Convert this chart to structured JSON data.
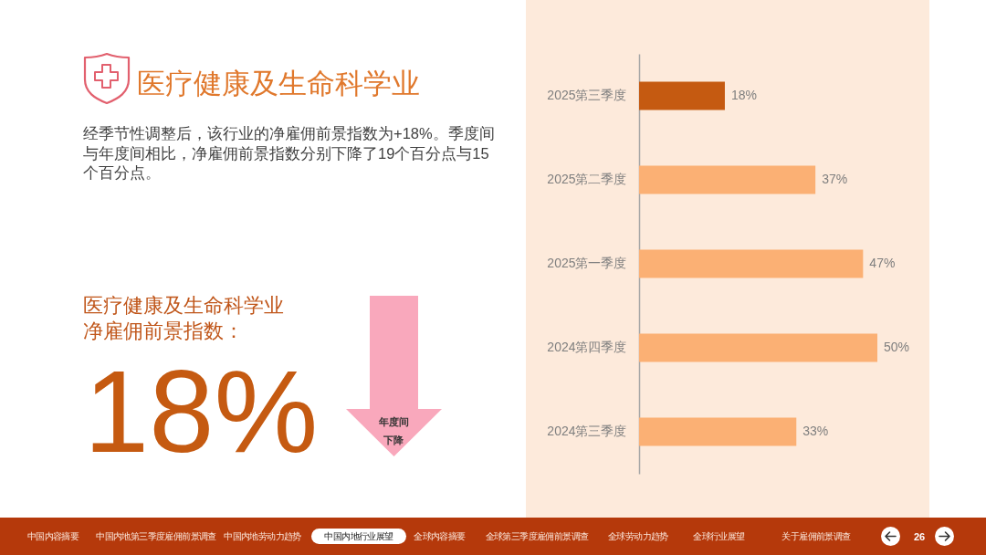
{
  "chart_data": [
    {
      "type": "other",
      "title": "医疗健康及生命科学业",
      "subtitle": "经季节性调整后，该行业的净雇佣前景指数为+18%。季度间与年度间相比，净雇佣前景指数分别下降了19个百分点与15个百分点。",
      "annotations": [
        "医疗健康及生命科学业净雇佣前景指数：",
        "18%",
        "年度间下降"
      ]
    },
    {
      "type": "bar",
      "orientation": "horizontal",
      "categories": [
        "2025第三季度",
        "2025第二季度",
        "2025第一季度",
        "2024第四季度",
        "2024第三季度"
      ],
      "values": [
        18,
        37,
        47,
        50,
        33
      ],
      "colors": [
        "#c55a11",
        "#fbb074",
        "#fbb074",
        "#fbb074",
        "#fbb074"
      ],
      "value_labels": [
        "18%",
        "37%",
        "47%",
        "50%",
        "33%"
      ],
      "tick_labels": "y"
    },
    {
      "type": "other",
      "annotations": [
        "中国内容摘要",
        "中国内地第三季度雇佣前景调查",
        "中国内地劳动力趋势",
        "中国内地行业展望",
        "全球内容摘要",
        "全球第三季度雇佣前景调查",
        "全球劳动力趋势",
        "全球行业展望",
        "关于雇佣前景调查",
        "26"
      ]
    }
  ]
}
